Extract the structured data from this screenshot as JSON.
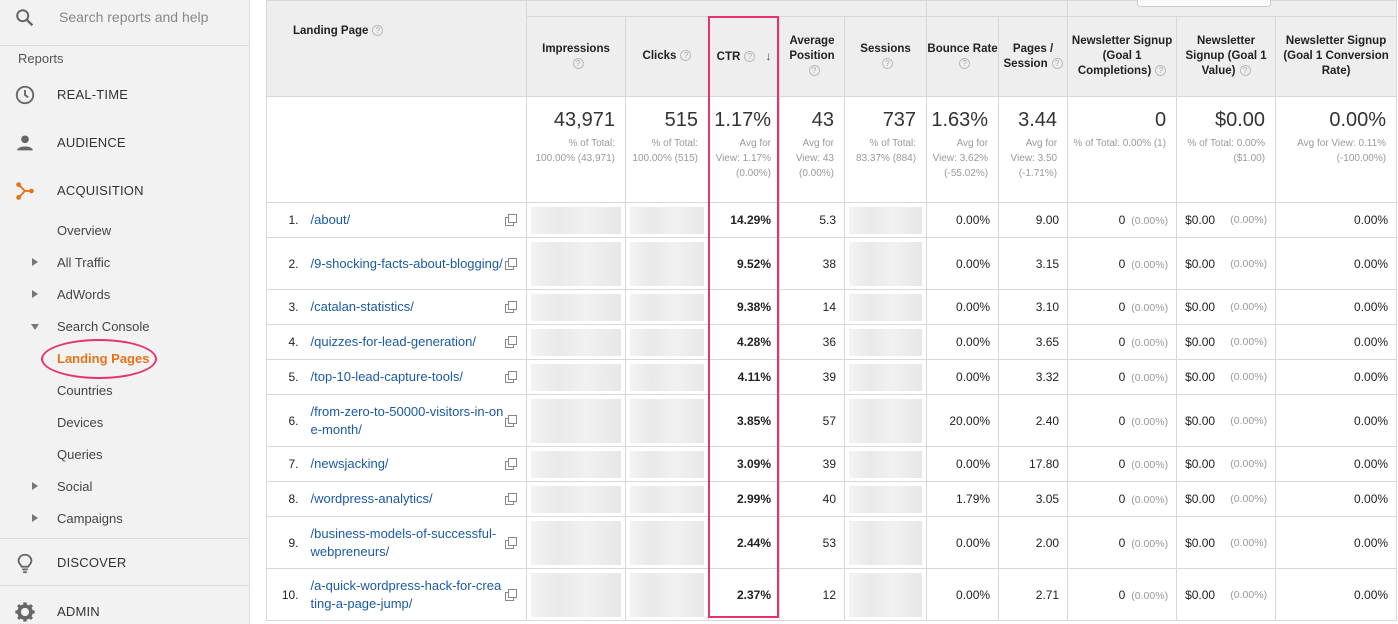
{
  "sidebar": {
    "search_placeholder": "Search reports and help",
    "reports_label": "Reports",
    "realtime": "REAL-TIME",
    "audience": "AUDIENCE",
    "acquisition": "ACQUISITION",
    "overview": "Overview",
    "all_traffic": "All Traffic",
    "adwords": "AdWords",
    "search_console": "Search Console",
    "landing_pages": "Landing Pages",
    "countries": "Countries",
    "devices": "Devices",
    "queries": "Queries",
    "social": "Social",
    "campaigns": "Campaigns",
    "discover": "DISCOVER",
    "admin": "ADMIN",
    "accent_color": "#e8711a",
    "highlight_color": "#e6336b"
  },
  "table": {
    "headers": {
      "landing_page": "Landing Page",
      "impressions": "Impressions",
      "clicks": "Clicks",
      "ctr": "CTR",
      "avg_position": "Average Position",
      "sessions": "Sessions",
      "bounce_rate": "Bounce Rate",
      "pages_session": "Pages / Session",
      "goal1_completions": "Newsletter Signup (Goal 1 Completions)",
      "goal1_value": "Newsletter Signup (Goal 1 Value)",
      "goal1_conv_rate": "Newsletter Signup (Goal 1 Conversion Rate)"
    },
    "totals": {
      "impressions": {
        "value": "43,971",
        "sub": "% of Total: 100.00% (43,971)"
      },
      "clicks": {
        "value": "515",
        "sub": "% of Total: 100.00% (515)"
      },
      "ctr": {
        "value": "1.17%",
        "sub": "Avg for View: 1.17% (0.00%)"
      },
      "avg_position": {
        "value": "43",
        "sub": "Avg for View: 43 (0.00%)"
      },
      "sessions": {
        "value": "737",
        "sub": "% of Total: 83.37% (884)"
      },
      "bounce_rate": {
        "value": "1.63%",
        "sub": "Avg for View: 3.62% (-55.02%)"
      },
      "pages_session": {
        "value": "3.44",
        "sub": "Avg for View: 3.50 (-1.71%)"
      },
      "goal1_completions": {
        "value": "0",
        "sub": "% of Total: 0.00% (1)"
      },
      "goal1_value": {
        "value": "$0.00",
        "sub": "% of Total: 0.00% ($1.00)"
      },
      "goal1_conv_rate": {
        "value": "0.00%",
        "sub": "Avg for View: 0.11% (-100.00%)"
      }
    },
    "rows": [
      {
        "idx": "1.",
        "page": "/about/",
        "ctr": "14.29%",
        "pos": "5.3",
        "bounce": "0.00%",
        "pps": "9.00",
        "goal": "0",
        "goal_pct": "(0.00%)",
        "value": "$0.00",
        "value_pct": "(0.00%)",
        "conv": "0.00%"
      },
      {
        "idx": "2.",
        "page": "/9-shocking-facts-about-blogging/",
        "ctr": "9.52%",
        "pos": "38",
        "bounce": "0.00%",
        "pps": "3.15",
        "goal": "0",
        "goal_pct": "(0.00%)",
        "value": "$0.00",
        "value_pct": "(0.00%)",
        "conv": "0.00%"
      },
      {
        "idx": "3.",
        "page": "/catalan-statistics/",
        "ctr": "9.38%",
        "pos": "14",
        "bounce": "0.00%",
        "pps": "3.10",
        "goal": "0",
        "goal_pct": "(0.00%)",
        "value": "$0.00",
        "value_pct": "(0.00%)",
        "conv": "0.00%"
      },
      {
        "idx": "4.",
        "page": "/quizzes-for-lead-generation/",
        "ctr": "4.28%",
        "pos": "36",
        "bounce": "0.00%",
        "pps": "3.65",
        "goal": "0",
        "goal_pct": "(0.00%)",
        "value": "$0.00",
        "value_pct": "(0.00%)",
        "conv": "0.00%"
      },
      {
        "idx": "5.",
        "page": "/top-10-lead-capture-tools/",
        "ctr": "4.11%",
        "pos": "39",
        "bounce": "0.00%",
        "pps": "3.32",
        "goal": "0",
        "goal_pct": "(0.00%)",
        "value": "$0.00",
        "value_pct": "(0.00%)",
        "conv": "0.00%"
      },
      {
        "idx": "6.",
        "page": "/from-zero-to-50000-visitors-in-one-month/",
        "ctr": "3.85%",
        "pos": "57",
        "bounce": "20.00%",
        "pps": "2.40",
        "goal": "0",
        "goal_pct": "(0.00%)",
        "value": "$0.00",
        "value_pct": "(0.00%)",
        "conv": "0.00%"
      },
      {
        "idx": "7.",
        "page": "/newsjacking/",
        "ctr": "3.09%",
        "pos": "39",
        "bounce": "0.00%",
        "pps": "17.80",
        "goal": "0",
        "goal_pct": "(0.00%)",
        "value": "$0.00",
        "value_pct": "(0.00%)",
        "conv": "0.00%"
      },
      {
        "idx": "8.",
        "page": "/wordpress-analytics/",
        "ctr": "2.99%",
        "pos": "40",
        "bounce": "1.79%",
        "pps": "3.05",
        "goal": "0",
        "goal_pct": "(0.00%)",
        "value": "$0.00",
        "value_pct": "(0.00%)",
        "conv": "0.00%"
      },
      {
        "idx": "9.",
        "page": "/business-models-of-successful-webpreneurs/",
        "ctr": "2.44%",
        "pos": "53",
        "bounce": "0.00%",
        "pps": "2.00",
        "goal": "0",
        "goal_pct": "(0.00%)",
        "value": "$0.00",
        "value_pct": "(0.00%)",
        "conv": "0.00%"
      },
      {
        "idx": "10.",
        "page": "/a-quick-wordpress-hack-for-creating-a-page-jump/",
        "ctr": "2.37%",
        "pos": "12",
        "bounce": "0.00%",
        "pps": "2.71",
        "goal": "0",
        "goal_pct": "(0.00%)",
        "value": "$0.00",
        "value_pct": "(0.00%)",
        "conv": "0.00%"
      }
    ]
  }
}
